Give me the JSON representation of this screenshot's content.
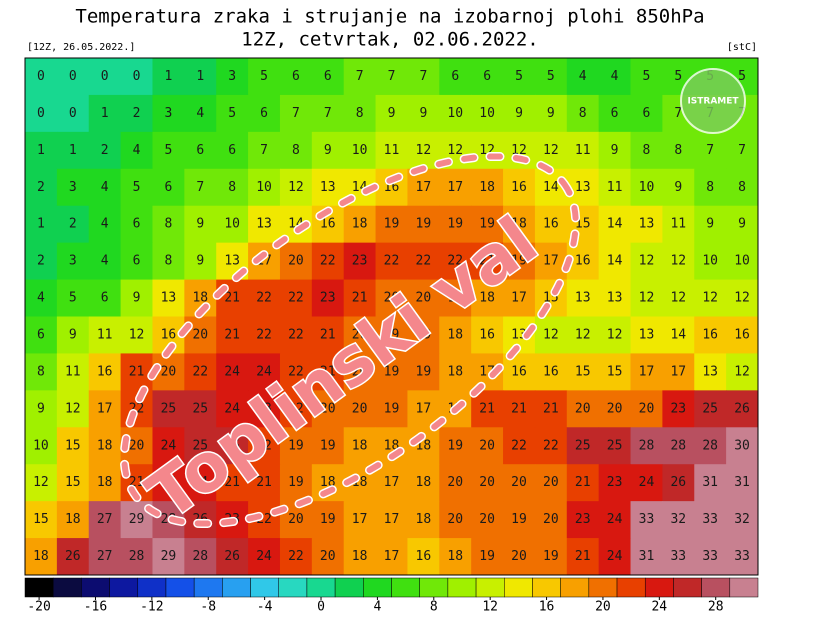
{
  "header": {
    "title": "Temperatura zraka i strujanje na izobarnoj plohi 850hPa",
    "subtitle": "12Z, cetvrtak, 02.06.2022.",
    "run": "[12Z, 26.05.2022.]",
    "unit": "[stC]"
  },
  "map": {
    "grid": [
      [
        0,
        0,
        0,
        0,
        1,
        1,
        3,
        5,
        6,
        6,
        7,
        7,
        7,
        6,
        6,
        5,
        5,
        4,
        4,
        5,
        5,
        5,
        5
      ],
      [
        0,
        0,
        1,
        2,
        3,
        4,
        5,
        6,
        7,
        7,
        8,
        9,
        9,
        10,
        10,
        9,
        9,
        8,
        6,
        6,
        7,
        7,
        7
      ],
      [
        1,
        1,
        2,
        4,
        5,
        6,
        6,
        7,
        8,
        9,
        10,
        11,
        12,
        12,
        12,
        12,
        12,
        11,
        9,
        8,
        8,
        7,
        7
      ],
      [
        2,
        3,
        4,
        5,
        6,
        7,
        8,
        10,
        12,
        13,
        14,
        16,
        17,
        17,
        18,
        16,
        14,
        13,
        11,
        10,
        9,
        8,
        8
      ],
      [
        1,
        2,
        4,
        6,
        8,
        9,
        10,
        13,
        14,
        16,
        18,
        19,
        19,
        19,
        19,
        18,
        16,
        15,
        14,
        13,
        11,
        9,
        9
      ],
      [
        2,
        3,
        4,
        6,
        8,
        9,
        13,
        17,
        20,
        22,
        23,
        22,
        22,
        22,
        21,
        19,
        17,
        16,
        14,
        12,
        12,
        10,
        10
      ],
      [
        4,
        5,
        6,
        9,
        13,
        18,
        21,
        22,
        22,
        23,
        21,
        20,
        20,
        19,
        18,
        17,
        15,
        13,
        13,
        12,
        12,
        12,
        12
      ],
      [
        6,
        9,
        11,
        12,
        16,
        20,
        21,
        22,
        22,
        21,
        20,
        19,
        19,
        18,
        16,
        13,
        12,
        12,
        12,
        13,
        14,
        16,
        16
      ],
      [
        8,
        11,
        16,
        21,
        20,
        22,
        24,
        24,
        22,
        21,
        20,
        19,
        19,
        18,
        17,
        16,
        16,
        15,
        15,
        17,
        17,
        13,
        12
      ],
      [
        9,
        12,
        17,
        22,
        25,
        25,
        24,
        23,
        22,
        20,
        20,
        19,
        17,
        17,
        21,
        21,
        21,
        20,
        20,
        20,
        23,
        25,
        26
      ],
      [
        10,
        15,
        18,
        20,
        24,
        25,
        25,
        22,
        19,
        19,
        18,
        18,
        18,
        19,
        20,
        22,
        22,
        25,
        25,
        28,
        28,
        28,
        30
      ],
      [
        12,
        15,
        18,
        21,
        24,
        24,
        21,
        21,
        19,
        18,
        18,
        17,
        18,
        20,
        20,
        20,
        20,
        21,
        23,
        24,
        26,
        31,
        31
      ],
      [
        15,
        18,
        27,
        29,
        28,
        26,
        23,
        22,
        20,
        19,
        17,
        17,
        18,
        20,
        20,
        19,
        20,
        23,
        24,
        33,
        32,
        33,
        32
      ],
      [
        18,
        26,
        27,
        28,
        29,
        28,
        26,
        24,
        22,
        20,
        18,
        17,
        16,
        18,
        19,
        20,
        19,
        21,
        24,
        31,
        33,
        33,
        33
      ]
    ]
  },
  "annotation": "Toplinski val",
  "logo": "ISTRAMET",
  "colorbar": {
    "lim": [
      -21,
      31
    ],
    "colors": [
      "#000000",
      "#0b0b40",
      "#0c0c70",
      "#0d18a0",
      "#0f30c8",
      "#1450e8",
      "#1e78f0",
      "#28a0f0",
      "#30c8e8",
      "#28d8c0",
      "#18d890",
      "#10d050",
      "#20d820",
      "#40e010",
      "#70e808",
      "#a0f000",
      "#c8f000",
      "#f0e800",
      "#f8c800",
      "#f8a000",
      "#f07000",
      "#e84000",
      "#d81810",
      "#c02828",
      "#b85060",
      "#c88090"
    ],
    "ticks": [
      -20,
      -16,
      -12,
      -8,
      -4,
      0,
      4,
      8,
      12,
      16,
      20,
      24,
      28
    ]
  }
}
